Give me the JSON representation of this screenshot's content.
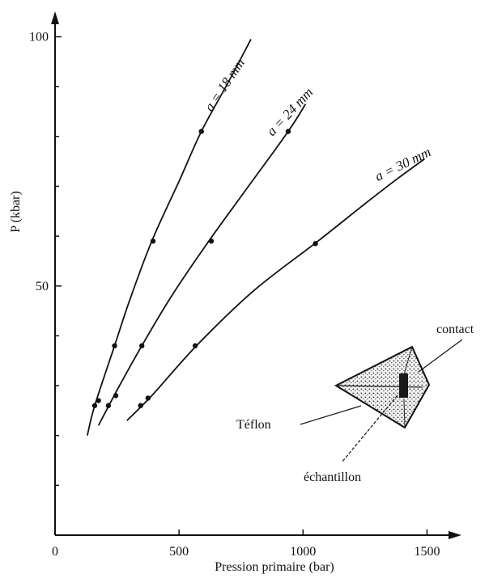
{
  "chart_data": {
    "type": "line",
    "title": "",
    "xlabel": "Pression primaire (bar)",
    "ylabel": "P (kbar)",
    "xlim": [
      0,
      1600
    ],
    "ylim": [
      0,
      105
    ],
    "x_ticks": [
      0,
      500,
      1000,
      1500
    ],
    "x_tick_labels": [
      "0",
      "500",
      "1000",
      "1500"
    ],
    "y_ticks": [
      50,
      100
    ],
    "y_tick_labels": [
      "50",
      "100"
    ],
    "grid": false,
    "series": [
      {
        "name": "a = 18 mm",
        "curve_x": [
          130,
          160,
          240,
          300,
          390,
          500,
          590,
          700,
          790
        ],
        "curve_y": [
          20,
          26,
          38,
          47,
          59,
          71,
          81,
          91,
          99.5
        ],
        "points_x": [
          160,
          175,
          240,
          395,
          590
        ],
        "points_y": [
          26,
          27,
          38,
          59,
          81
        ]
      },
      {
        "name": "a = 24 mm",
        "curve_x": [
          175,
          260,
          350,
          470,
          620,
          780,
          940,
          1010
        ],
        "curve_y": [
          22,
          30,
          38,
          48,
          59,
          70,
          81,
          86.5
        ],
        "points_x": [
          215,
          245,
          350,
          630,
          940
        ],
        "points_y": [
          26,
          28,
          38,
          59,
          81
        ]
      },
      {
        "name": "a = 30 mm",
        "curve_x": [
          290,
          390,
          570,
          800,
          1060,
          1250,
          1380,
          1490
        ],
        "curve_y": [
          23,
          28,
          38,
          49,
          59,
          66.5,
          71.5,
          75.5
        ],
        "points_x": [
          345,
          375,
          565,
          1050
        ],
        "points_y": [
          26,
          27.5,
          38,
          58.5
        ]
      }
    ]
  },
  "inset": {
    "labels": {
      "contact": "contact",
      "teflon": "Téflon",
      "sample": "échantillon"
    }
  }
}
